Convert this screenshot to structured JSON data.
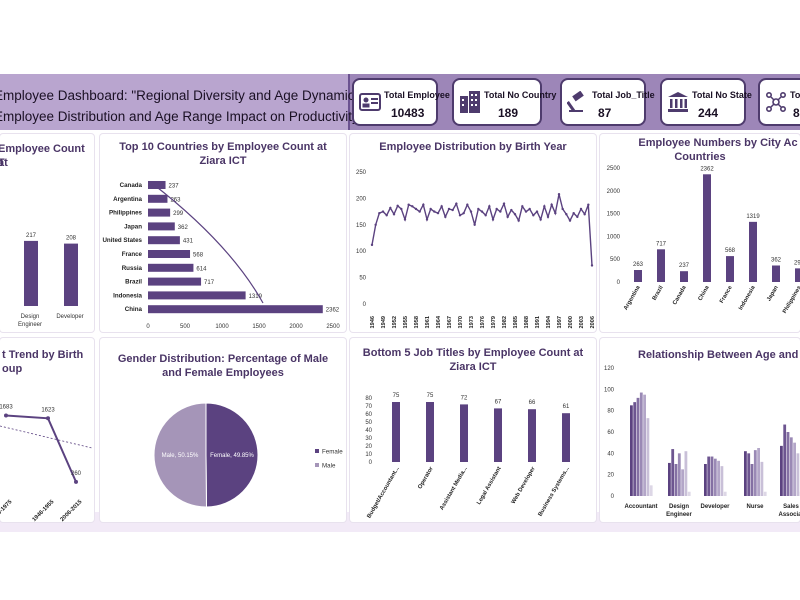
{
  "header": {
    "title_line1": "Employee Dashboard: \"Regional Diversity and Age Dynamics:",
    "title_line2": "Employee Distribution and Age Range Impact on Productivity"
  },
  "kpis": [
    {
      "label": "Total Employee",
      "value": "10483",
      "icon": "id-card-icon"
    },
    {
      "label": "Total No Country",
      "value": "189",
      "icon": "buildings-icon"
    },
    {
      "label": "Total Job_Title",
      "value": "87",
      "icon": "gavel-icon"
    },
    {
      "label": "Total No State",
      "value": "244",
      "icon": "bank-icon"
    },
    {
      "label": "Total",
      "value": "8",
      "icon": "network-icon"
    }
  ],
  "panels": {
    "job_title_count": {
      "title_line1": "Employee Count at",
      "title_line2": "T"
    },
    "top_countries": {
      "title_line1": "Top 10 Countries by Employee Count at",
      "title_line2": "Ziara ICT"
    },
    "birth_year": {
      "title": "Employee Distribution by Birth Year"
    },
    "city_countries": {
      "title_line1": "Employee Numbers by City Ac",
      "title_line2": "Countries"
    },
    "trend_birth": {
      "title_line1": "t Trend by Birth",
      "title_line2": "oup"
    },
    "gender": {
      "title_line1": "Gender Distribution: Percentage of Male",
      "title_line2": "and Female Employees"
    },
    "bottom_jobs": {
      "title_line1": "Bottom 5 Job Titles by Employee Count at",
      "title_line2": "Ziara ICT"
    },
    "age_job": {
      "title": "Relationship Between Age and Job Tit"
    }
  },
  "colors": {
    "primary": "#5b4280",
    "banner": "#9d86b8",
    "title_box": "#b9a5cf",
    "male": "#a595b8",
    "female": "#5b4280"
  },
  "chart_data": [
    {
      "id": "job_title_count",
      "type": "bar",
      "categories": [
        "Design Engineer",
        "Developer"
      ],
      "values": [
        217,
        208
      ],
      "ylim": [
        0,
        300
      ]
    },
    {
      "id": "top_countries",
      "type": "bar",
      "orientation": "horizontal",
      "categories": [
        "Canada",
        "Argentina",
        "Philippines",
        "Japan",
        "United States",
        "France",
        "Russia",
        "Brazil",
        "Indonesia",
        "China"
      ],
      "values": [
        237,
        263,
        299,
        362,
        431,
        568,
        614,
        717,
        1319,
        2362
      ],
      "xticks": [
        "0",
        "500",
        "1000",
        "1500",
        "2000",
        "2500"
      ],
      "xlim": [
        0,
        2500
      ]
    },
    {
      "id": "birth_year",
      "type": "line",
      "xticks": [
        "1946",
        "1949",
        "1952",
        "1955",
        "1958",
        "1961",
        "1964",
        "1967",
        "1970",
        "1973",
        "1976",
        "1979",
        "1982",
        "1985",
        "1988",
        "1991",
        "1994",
        "1997",
        "2000",
        "2003",
        "2006"
      ],
      "yticks": [
        "0",
        "50",
        "100",
        "150",
        "200",
        "250"
      ],
      "ylim": [
        0,
        250
      ],
      "x": [
        1946,
        1947,
        1948,
        1949,
        1950,
        1951,
        1952,
        1953,
        1954,
        1955,
        1956,
        1957,
        1958,
        1959,
        1960,
        1961,
        1962,
        1963,
        1964,
        1965,
        1966,
        1967,
        1968,
        1969,
        1970,
        1971,
        1972,
        1973,
        1974,
        1975,
        1976,
        1977,
        1978,
        1979,
        1980,
        1981,
        1982,
        1983,
        1984,
        1985,
        1986,
        1987,
        1988,
        1989,
        1990,
        1991,
        1992,
        1993,
        1994,
        1995,
        1996,
        1997,
        1998,
        1999,
        2000,
        2001,
        2002,
        2003,
        2004,
        2005,
        2006
      ],
      "values": [
        112,
        150,
        172,
        175,
        168,
        182,
        170,
        186,
        180,
        160,
        188,
        185,
        180,
        175,
        188,
        160,
        180,
        175,
        172,
        185,
        165,
        180,
        178,
        190,
        168,
        172,
        188,
        175,
        150,
        180,
        175,
        168,
        185,
        160,
        180,
        175,
        190,
        165,
        178,
        170,
        158,
        185,
        175,
        180,
        168,
        175,
        160,
        185,
        165,
        188,
        172,
        208,
        180,
        170,
        158,
        172,
        165,
        180,
        170,
        188,
        73
      ]
    },
    {
      "id": "city_countries",
      "type": "bar",
      "categories": [
        "Argentina",
        "Brazil",
        "Canada",
        "China",
        "France",
        "Indonesia",
        "Japan",
        "Philippines"
      ],
      "values": [
        263,
        717,
        237,
        2362,
        568,
        1319,
        362,
        299
      ],
      "yticks": [
        "0",
        "500",
        "1000",
        "1500",
        "2000",
        "2500"
      ],
      "ylim": [
        0,
        2500
      ]
    },
    {
      "id": "trend_birth",
      "type": "line",
      "categories": [
        "1966-1975",
        "1946-1955",
        "2006-2015"
      ],
      "values": [
        1683,
        1623,
        260
      ]
    },
    {
      "id": "gender",
      "type": "pie",
      "slices": [
        {
          "label": "Female",
          "value": 49.85,
          "text": "Female, 49.85%"
        },
        {
          "label": "Male",
          "value": 50.15,
          "text": "Male, 50.15%"
        }
      ]
    },
    {
      "id": "bottom_jobs",
      "type": "bar",
      "categories": [
        "Budget/Accountant...",
        "Operator",
        "Assistant Media...",
        "Legal Assistant",
        "Web Developer",
        "Business Systems..."
      ],
      "values": [
        75,
        75,
        72,
        67,
        66,
        61
      ],
      "yticks": [
        "0",
        "10",
        "20",
        "30",
        "40",
        "50",
        "60",
        "70",
        "80"
      ],
      "ylim": [
        0,
        80
      ]
    },
    {
      "id": "age_job",
      "type": "bar",
      "categories": [
        "Accountant",
        "Design Engineer",
        "Developer",
        "Nurse",
        "Sales Associat"
      ],
      "series_values": [
        [
          85,
          88,
          92,
          97,
          95,
          73,
          10
        ],
        [
          31,
          44,
          30,
          40,
          25,
          42,
          4
        ],
        [
          30,
          37,
          37,
          35,
          33,
          28,
          4
        ],
        [
          42,
          40,
          30,
          43,
          45,
          32,
          4
        ],
        [
          47,
          67,
          60,
          55,
          50,
          40,
          4
        ]
      ],
      "yticks": [
        "0",
        "20",
        "40",
        "60",
        "80",
        "100",
        "120"
      ],
      "ylim": [
        0,
        120
      ]
    }
  ]
}
